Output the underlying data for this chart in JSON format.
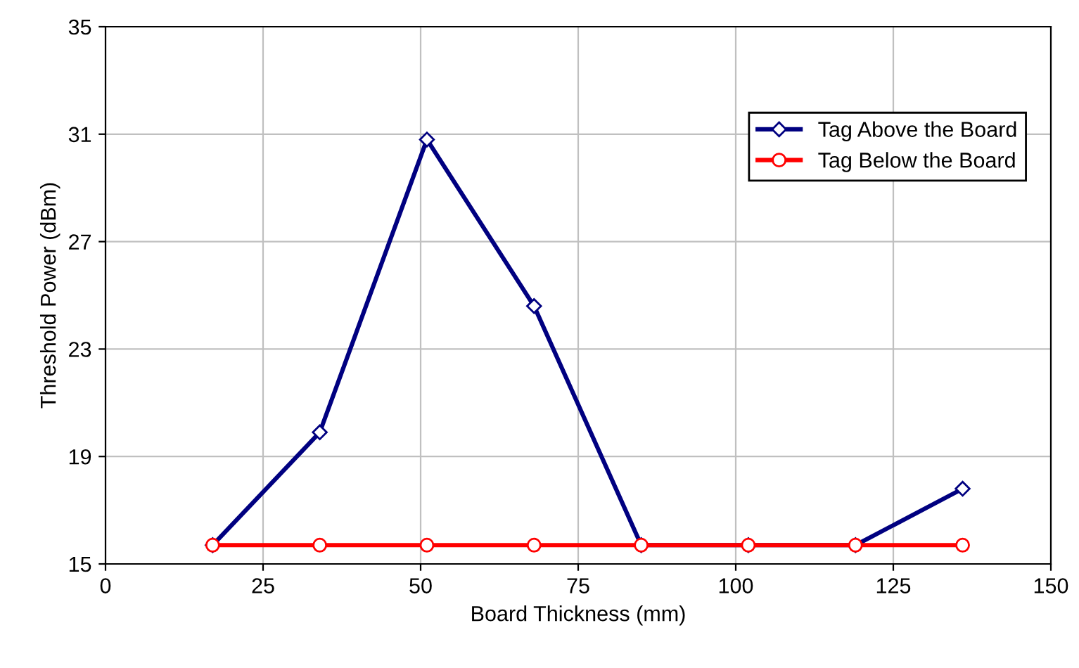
{
  "chart_data": {
    "type": "line",
    "xlabel": "Board Thickness (mm)",
    "ylabel": "Threshold Power (dBm)",
    "x": [
      17,
      34,
      51,
      68,
      85,
      102,
      119,
      136
    ],
    "series": [
      {
        "name": "Tag Above the Board",
        "color": "#000080",
        "marker": "diamond",
        "values": [
          15.7,
          19.9,
          30.8,
          24.6,
          15.7,
          15.7,
          15.7,
          17.8
        ]
      },
      {
        "name": "Tag Below the Board",
        "color": "#ff0000",
        "marker": "circle",
        "values": [
          15.7,
          15.7,
          15.7,
          15.7,
          15.7,
          15.7,
          15.7,
          15.7
        ]
      }
    ],
    "xlim": [
      0,
      150
    ],
    "xticks": [
      0,
      25,
      50,
      75,
      100,
      125,
      150
    ],
    "ylim": [
      15,
      35
    ],
    "yticks": [
      15,
      19,
      23,
      27,
      31,
      35
    ],
    "grid": true,
    "legend": "top right",
    "line_style": "solid"
  }
}
